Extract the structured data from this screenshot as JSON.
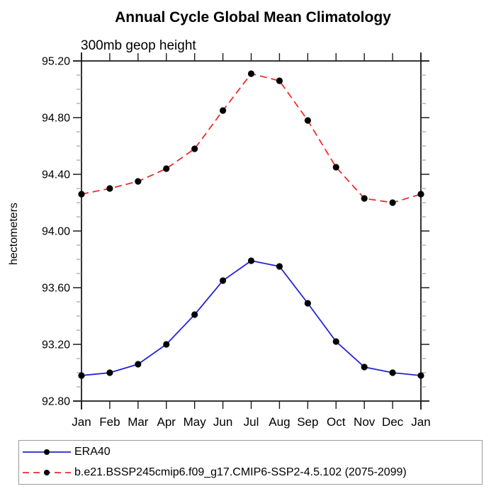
{
  "window": {
    "background": "#ffffff"
  },
  "chart_data": {
    "type": "line",
    "title": "Annual Cycle Global Mean Climatology",
    "subtitle": "300mb geop height",
    "ylabel": "hectometers",
    "x_tick_labels": [
      "Jan",
      "Feb",
      "Mar",
      "Apr",
      "May",
      "Jun",
      "Jul",
      "Aug",
      "Sep",
      "Oct",
      "Nov",
      "Dec",
      "Jan"
    ],
    "ylim": [
      92.8,
      95.2
    ],
    "y_major_ticks": [
      92.8,
      93.2,
      93.6,
      94.0,
      94.4,
      94.8,
      95.2
    ],
    "y_tick_labels": [
      "92.80",
      "93.20",
      "93.60",
      "94.00",
      "94.40",
      "94.80",
      "95.20"
    ],
    "y_minor_step": 0.1,
    "grid": "off",
    "legend_position": "bottom-box",
    "axis_color": "#1a1a1a",
    "minor_tick_color": "#999999",
    "marker_color": "#000000",
    "series": [
      {
        "name": "ERA40",
        "color": "#2323d6",
        "line_style": "solid",
        "marker": "filled-circle",
        "values": [
          92.98,
          93.0,
          93.06,
          93.2,
          93.41,
          93.65,
          93.79,
          93.75,
          93.49,
          93.22,
          93.04,
          93.0,
          92.98
        ]
      },
      {
        "name": "b.e21.BSSP245cmip6.f09_g17.CMIP6-SSP2-4.5.102 (2075-2099)",
        "color": "#ee2c2c",
        "line_style": "dashed",
        "marker": "filled-circle",
        "values": [
          94.26,
          94.3,
          94.35,
          94.44,
          94.58,
          94.85,
          95.11,
          95.06,
          94.78,
          94.45,
          94.23,
          94.2,
          94.26
        ]
      }
    ]
  }
}
